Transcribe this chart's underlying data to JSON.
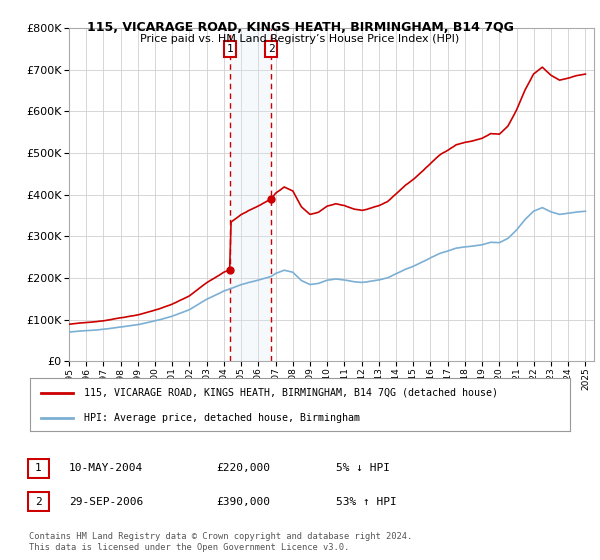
{
  "title": "115, VICARAGE ROAD, KINGS HEATH, BIRMINGHAM, B14 7QG",
  "subtitle": "Price paid vs. HM Land Registry’s House Price Index (HPI)",
  "ylim": [
    0,
    800000
  ],
  "yticks": [
    0,
    100000,
    200000,
    300000,
    400000,
    500000,
    600000,
    700000,
    800000
  ],
  "sale1_date_num": 2004.36,
  "sale1_price": 220000,
  "sale1_label": "10-MAY-2004",
  "sale1_price_label": "£220,000",
  "sale1_hpi_label": "5% ↓ HPI",
  "sale2_date_num": 2006.75,
  "sale2_price": 390000,
  "sale2_label": "29-SEP-2006",
  "sale2_price_label": "£390,000",
  "sale2_hpi_label": "53% ↑ HPI",
  "legend_line1": "115, VICARAGE ROAD, KINGS HEATH, BIRMINGHAM, B14 7QG (detached house)",
  "legend_line2": "HPI: Average price, detached house, Birmingham",
  "footnote1": "Contains HM Land Registry data © Crown copyright and database right 2024.",
  "footnote2": "This data is licensed under the Open Government Licence v3.0.",
  "red_line_color": "#cc0000",
  "blue_line_color": "#7bafd4",
  "shade_color": "#dde8f5",
  "grid_color": "#d0d0d0",
  "xmin": 1995.0,
  "xmax": 2025.5
}
